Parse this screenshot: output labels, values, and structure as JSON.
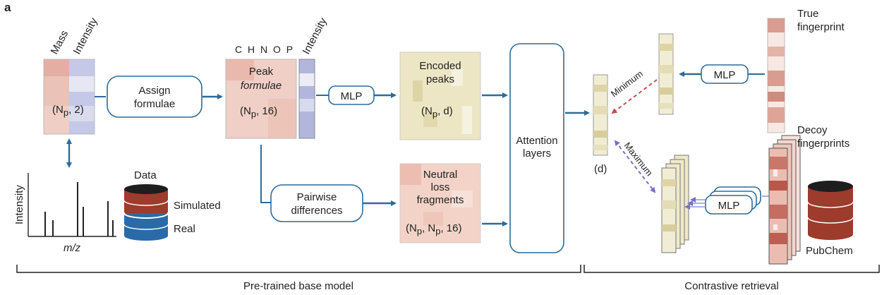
{
  "panel_label": "a",
  "input": {
    "mass": "Mass",
    "intensity": "Intensity",
    "dims": "(N",
    "dims_sub": "p",
    "dims_rest": ", 2)"
  },
  "assign": "Assign formulae",
  "assign_l1": "Assign",
  "assign_l2": "formulae",
  "chnop": "C H N O P",
  "chnop_intensity": "Intensity",
  "peak_l1": "Peak",
  "peak_l2": "formulae",
  "peak_dims": "(N",
  "peak_dims_sub": "p",
  "peak_dims_rest": ", 16)",
  "mlp": "MLP",
  "encoded_l1": "Encoded",
  "encoded_l2": "peaks",
  "encoded_dims": "(N",
  "encoded_dims_sub": "p",
  "encoded_dims_rest": ", d)",
  "pairwise_l1": "Pairwise",
  "pairwise_l2": "differences",
  "neutral_l1": "Neutral",
  "neutral_l2": "loss",
  "neutral_l3": "fragments",
  "neutral_dims": "(N",
  "neutral_dims_sub": "p",
  "neutral_dims_mid": ", N",
  "neutral_dims_sub2": "p",
  "neutral_dims_rest": ", 16)",
  "attention_l1": "Attention",
  "attention_l2": "layers",
  "spectrum": {
    "ylabel": "Intensity",
    "xlabel": "m/z"
  },
  "data_legend": {
    "title": "Data",
    "simulated": "Simulated",
    "real": "Real"
  },
  "embed_dim": "(d)",
  "minimum": "Minimum",
  "maximum": "Maximum",
  "true_fp_l1": "True",
  "true_fp_l2": "fingerprint",
  "decoy_l1": "Decoy",
  "decoy_l2": "fingerprints",
  "pubchem": "PubChem",
  "bracket_left": "Pre-trained base model",
  "bracket_right": "Contrastive retrieval",
  "colors": {
    "arrow": "#2e6a9a",
    "pink": "#e9b3ab",
    "blue": "#a9b2d8",
    "khaki": "#e8e2bd",
    "salmon": "#f1c6b8",
    "brown": "#9d3b2c",
    "real_blue": "#2a6aa8",
    "min_red": "#c0504d",
    "max_purple": "#7a6fc4"
  }
}
